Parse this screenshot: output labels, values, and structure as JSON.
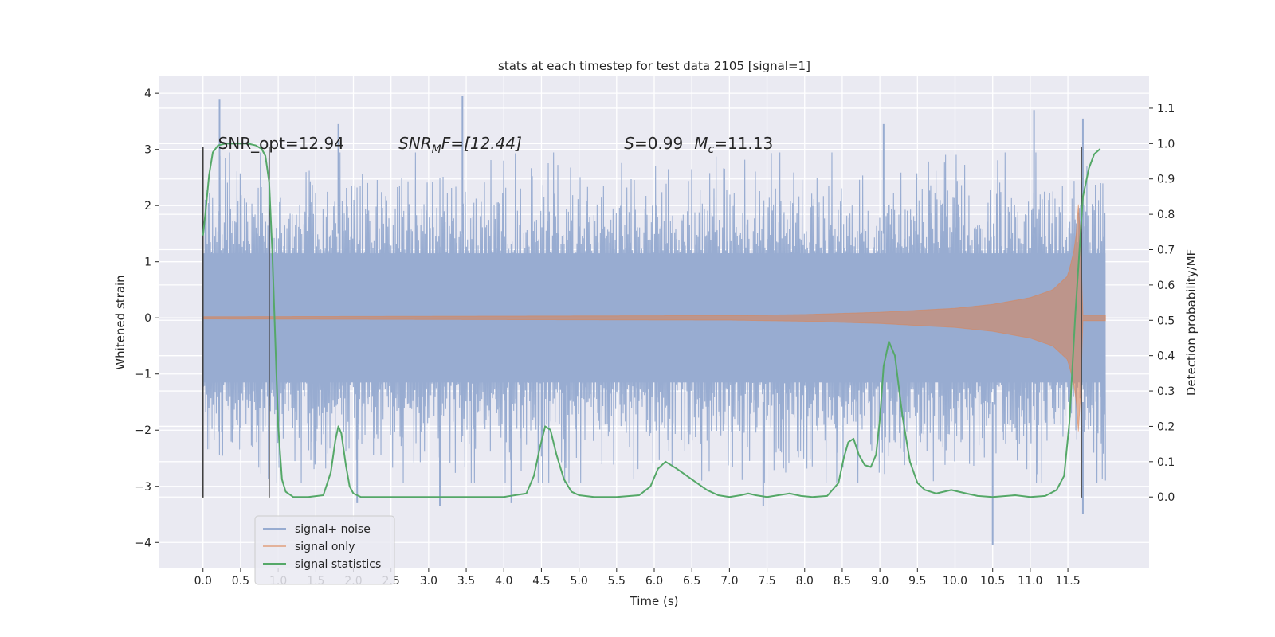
{
  "chart_data": {
    "type": "line",
    "title": "stats at each timestep for test data 2105 [signal=1]",
    "xlabel": "Time (s)",
    "ylabel_left": "Whitened strain",
    "ylabel_right": "Detection probability/MF",
    "xlim": [
      -0.58,
      12.58
    ],
    "ylim_left": [
      -4.45,
      4.3
    ],
    "ylim_right": [
      -0.2,
      1.19
    ],
    "xticks": [
      0.0,
      0.5,
      1.0,
      1.5,
      2.0,
      2.5,
      3.0,
      3.5,
      4.0,
      4.5,
      5.0,
      5.5,
      6.0,
      6.5,
      7.0,
      7.5,
      8.0,
      8.5,
      9.0,
      9.5,
      10.0,
      10.5,
      11.0,
      11.5
    ],
    "xtick_labels": [
      "0.0",
      "0.5",
      "1.0",
      "1.5",
      "2.0",
      "2.5",
      "3.0",
      "3.5",
      "4.0",
      "4.5",
      "5.0",
      "5.5",
      "6.0",
      "6.5",
      "7.0",
      "7.5",
      "8.0",
      "8.5",
      "9.0",
      "9.5",
      "10.0",
      "10.5",
      "11.0",
      "11.5"
    ],
    "yticks_left": [
      -4,
      -3,
      -2,
      -1,
      0,
      1,
      2,
      3,
      4
    ],
    "yticks_left_labels": [
      "−4",
      "−3",
      "−2",
      "−1",
      "0",
      "1",
      "2",
      "3",
      "4"
    ],
    "yticks_right": [
      0.0,
      0.1,
      0.2,
      0.3,
      0.4,
      0.5,
      0.6,
      0.7,
      0.8,
      0.9,
      1.0,
      1.1
    ],
    "yticks_right_labels": [
      "0.0",
      "0.1",
      "0.2",
      "0.3",
      "0.4",
      "0.5",
      "0.6",
      "0.7",
      "0.8",
      "0.9",
      "1.0",
      "1.1"
    ],
    "grid": true,
    "legend_placement": "lower-left",
    "colors": {
      "background": "#eaeaf2",
      "noise": "#98acd1",
      "signal": "#dd8452",
      "stats": "#55a868",
      "vline": "#404040"
    },
    "series": [
      {
        "name": "signal+ noise",
        "axis": "left",
        "kind": "noise-band",
        "x_range": [
          0.0,
          12.0
        ],
        "typical_amplitude": 1.9,
        "extreme_values": [
          {
            "x": 0.22,
            "y": 3.9
          },
          {
            "x": 3.45,
            "y": 3.95
          },
          {
            "x": 11.05,
            "y": 3.7
          },
          {
            "x": 11.7,
            "y": 3.55
          },
          {
            "x": 10.5,
            "y": -4.05
          },
          {
            "x": 11.7,
            "y": -3.5
          },
          {
            "x": 2.05,
            "y": -3.3
          },
          {
            "x": 3.15,
            "y": -3.35
          },
          {
            "x": 4.1,
            "y": -3.3
          },
          {
            "x": 7.45,
            "y": -3.35
          },
          {
            "x": 1.8,
            "y": 3.45
          },
          {
            "x": 9.05,
            "y": 3.45
          }
        ]
      },
      {
        "name": "signal only",
        "axis": "left",
        "kind": "chirp-envelope",
        "x": [
          0.0,
          7.0,
          8.0,
          9.0,
          10.0,
          10.5,
          11.0,
          11.3,
          11.5,
          11.6,
          11.65,
          11.7,
          12.0
        ],
        "envelope": [
          0.02,
          0.04,
          0.06,
          0.1,
          0.17,
          0.24,
          0.36,
          0.5,
          0.75,
          1.3,
          2.2,
          0.05,
          0.05
        ]
      },
      {
        "name": "signal statistics",
        "axis": "right",
        "x": [
          0.0,
          0.04,
          0.08,
          0.13,
          0.2,
          0.3,
          0.45,
          0.6,
          0.7,
          0.78,
          0.83,
          0.88,
          0.92,
          0.96,
          1.0,
          1.05,
          1.1,
          1.2,
          1.4,
          1.6,
          1.7,
          1.76,
          1.8,
          1.84,
          1.9,
          1.95,
          2.0,
          2.1,
          2.2,
          2.5,
          3.0,
          3.5,
          4.0,
          4.3,
          4.4,
          4.48,
          4.55,
          4.62,
          4.7,
          4.8,
          4.9,
          5.0,
          5.2,
          5.5,
          5.8,
          5.95,
          6.05,
          6.15,
          6.3,
          6.5,
          6.7,
          6.85,
          7.0,
          7.15,
          7.25,
          7.35,
          7.5,
          7.65,
          7.8,
          7.95,
          8.1,
          8.3,
          8.45,
          8.52,
          8.58,
          8.65,
          8.72,
          8.8,
          8.88,
          8.95,
          9.0,
          9.05,
          9.12,
          9.2,
          9.3,
          9.4,
          9.5,
          9.6,
          9.75,
          9.95,
          10.15,
          10.3,
          10.5,
          10.8,
          11.0,
          11.2,
          11.35,
          11.45,
          11.52,
          11.6,
          11.7,
          11.78,
          11.85,
          11.93
        ],
        "values": [
          0.74,
          0.82,
          0.91,
          0.975,
          0.995,
          1.0,
          1.0,
          1.0,
          0.995,
          0.985,
          0.965,
          0.89,
          0.7,
          0.45,
          0.2,
          0.05,
          0.015,
          0.0,
          0.0,
          0.005,
          0.07,
          0.16,
          0.2,
          0.18,
          0.09,
          0.03,
          0.01,
          0.0,
          0.0,
          0.0,
          0.0,
          0.0,
          0.0,
          0.01,
          0.06,
          0.14,
          0.2,
          0.19,
          0.12,
          0.05,
          0.015,
          0.005,
          0.0,
          0.0,
          0.005,
          0.03,
          0.08,
          0.1,
          0.08,
          0.05,
          0.02,
          0.005,
          0.0,
          0.005,
          0.01,
          0.005,
          0.0,
          0.005,
          0.01,
          0.003,
          0.0,
          0.003,
          0.04,
          0.11,
          0.155,
          0.165,
          0.12,
          0.09,
          0.085,
          0.12,
          0.22,
          0.37,
          0.44,
          0.4,
          0.23,
          0.1,
          0.04,
          0.02,
          0.01,
          0.02,
          0.01,
          0.003,
          0.0,
          0.005,
          0.0,
          0.003,
          0.02,
          0.06,
          0.21,
          0.52,
          0.85,
          0.93,
          0.97,
          0.985
        ]
      }
    ],
    "vertical_lines": [
      {
        "x": 0.0,
        "y_range": [
          -3.2,
          3.05
        ]
      },
      {
        "x": 0.88,
        "y_range": [
          -3.2,
          3.05
        ]
      },
      {
        "x": 11.68,
        "y_range": [
          -3.2,
          3.05
        ]
      }
    ],
    "annotations": [
      {
        "id": "snr_opt",
        "x": 0.2,
        "y": 3.05
      },
      {
        "id": "snr_mf",
        "x": 2.6,
        "y": 3.05
      },
      {
        "id": "s_mc",
        "x": 5.6,
        "y": 3.05
      }
    ],
    "annotation_text": {
      "snr_opt": "SNR_opt=12.94",
      "snr_mf_a": "SNR",
      "snr_mf_sub": "M",
      "snr_mf_b": "F=[12.44]",
      "s_a": "S",
      "s_b": "=0.99",
      "mc_a": "M",
      "mc_sub": "c",
      "mc_b": "=11.13"
    }
  }
}
